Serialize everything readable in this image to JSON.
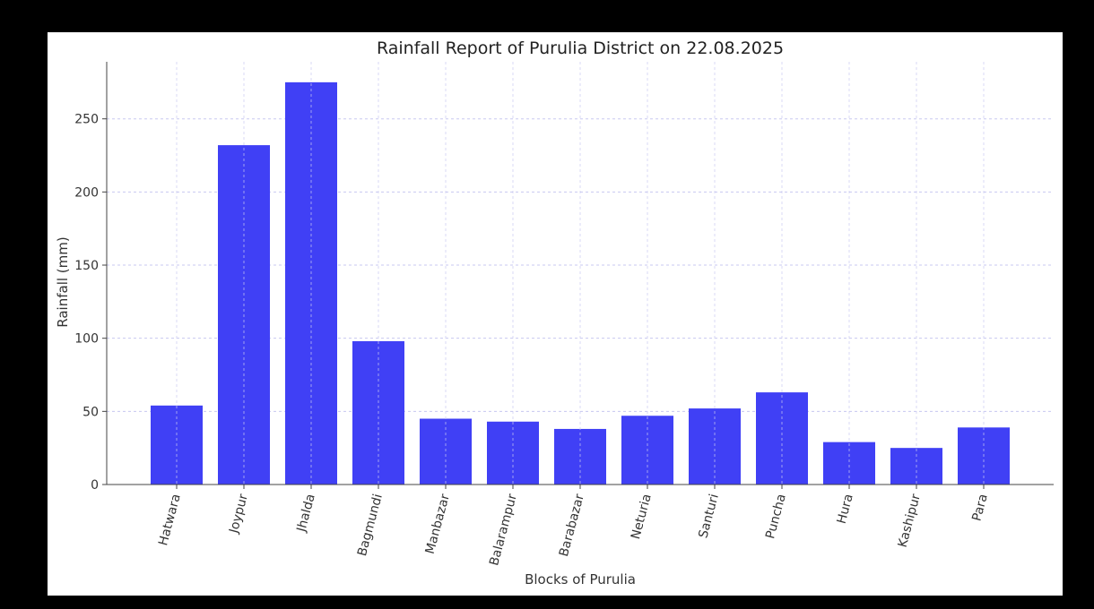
{
  "chart_data": {
    "type": "bar",
    "title": "Rainfall Report of Purulia District on 22.08.2025",
    "xlabel": "Blocks of Purulia",
    "ylabel": "Rainfall (mm)",
    "categories": [
      "Hatwara",
      "Joypur",
      "Jhalda",
      "Bagmundi",
      "Manbazar",
      "Balarampur",
      "Barabazar",
      "Neturia",
      "Santuri",
      "Puncha",
      "Hura",
      "Kashipur",
      "Para"
    ],
    "values": [
      54,
      232,
      275,
      98,
      45,
      43,
      38,
      47,
      52,
      63,
      29,
      25,
      39
    ],
    "ylim": [
      0,
      289
    ],
    "yticks": [
      0,
      50,
      100,
      150,
      200,
      250
    ],
    "grid": true,
    "bar_color": "#4040f5",
    "grid_color": "#c8c8f0",
    "legend": "none"
  }
}
